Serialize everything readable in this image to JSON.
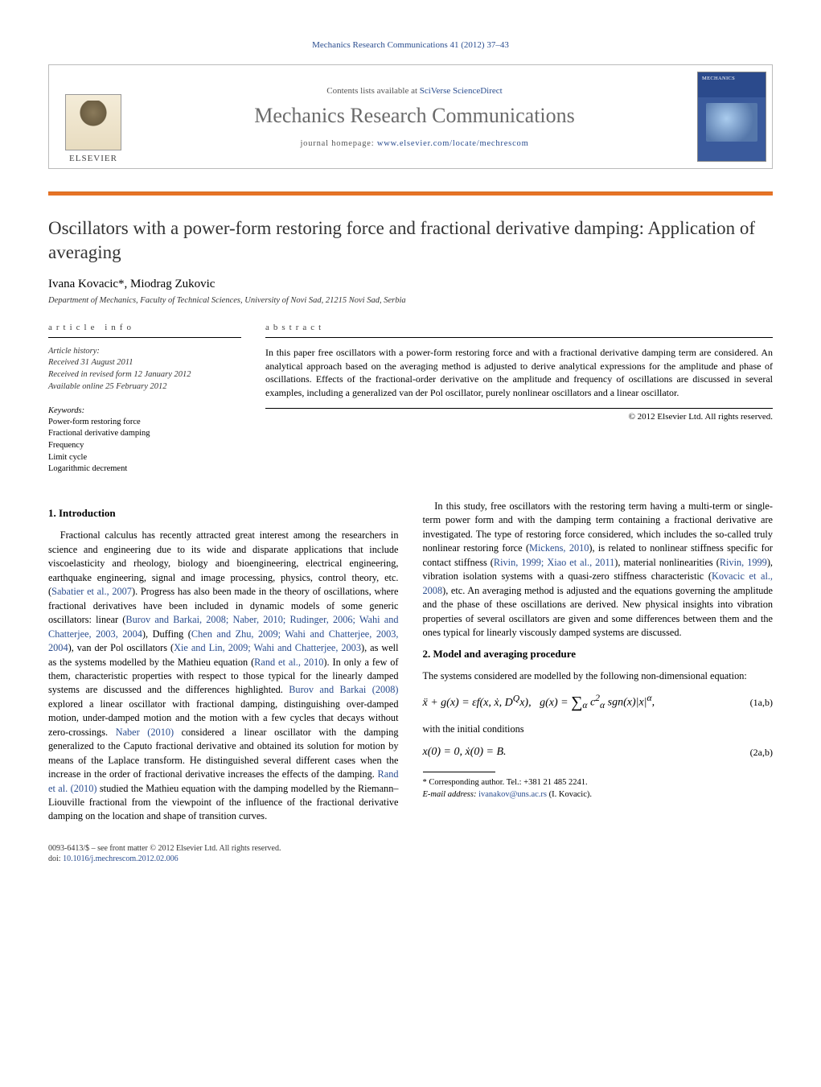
{
  "running_header": "Mechanics Research Communications 41 (2012) 37–43",
  "banner": {
    "contents_prefix": "Contents lists available at ",
    "contents_link": "SciVerse ScienceDirect",
    "journal": "Mechanics Research Communications",
    "homepage_prefix": "journal homepage: ",
    "homepage_url": "www.elsevier.com/locate/mechrescom",
    "elsevier": "ELSEVIER",
    "cover_label": "MECHANICS"
  },
  "title": "Oscillators with a power-form restoring force and fractional derivative damping: Application of averaging",
  "authors": "Ivana Kovacic*, Miodrag Zukovic",
  "affiliation": "Department of Mechanics, Faculty of Technical Sciences, University of Novi Sad, 21215 Novi Sad, Serbia",
  "info": {
    "label": "article info",
    "history_label": "Article history:",
    "received": "Received 31 August 2011",
    "revised": "Received in revised form 12 January 2012",
    "online": "Available online 25 February 2012",
    "keywords_label": "Keywords:",
    "keywords": [
      "Power-form restoring force",
      "Fractional derivative damping",
      "Frequency",
      "Limit cycle",
      "Logarithmic decrement"
    ]
  },
  "abstract": {
    "label": "abstract",
    "text": "In this paper free oscillators with a power-form restoring force and with a fractional derivative damping term are considered. An analytical approach based on the averaging method is adjusted to derive analytical expressions for the amplitude and phase of oscillations. Effects of the fractional-order derivative on the amplitude and frequency of oscillations are discussed in several examples, including a generalized van der Pol oscillator, purely nonlinear oscillators and a linear oscillator.",
    "copyright": "© 2012 Elsevier Ltd. All rights reserved."
  },
  "sections": {
    "s1_title": "1.  Introduction",
    "s1_p1a": "Fractional calculus has recently attracted great interest among the researchers in science and engineering due to its wide and disparate applications that include viscoelasticity and rheology, biology and bioengineering, electrical engineering, earthquake engineering, signal and image processing, physics, control theory, etc. (",
    "s1_r1": "Sabatier et al., 2007",
    "s1_p1b": "). Progress has also been made in the theory of oscillations, where fractional derivatives have been included in dynamic models of some generic oscillators: linear (",
    "s1_r2": "Burov and Barkai, 2008; Naber, 2010; Rudinger, 2006; Wahi and Chatterjee, 2003, 2004",
    "s1_p1c": "), Duffing (",
    "s1_r3": "Chen and Zhu, 2009; Wahi and Chatterjee, 2003, 2004",
    "s1_p1d": "), van der Pol oscillators (",
    "s1_r4": "Xie and Lin, 2009; Wahi and Chatterjee, 2003",
    "s1_p1e": "), as well as the systems modelled by the Mathieu equation (",
    "s1_r5": "Rand et al., 2010",
    "s1_p1f": "). In only a few of them, characteristic properties with respect to those typical for the linearly damped systems are discussed and the differences highlighted. ",
    "s1_r6": "Burov and Barkai (2008)",
    "s1_p1g": " explored a linear oscillator with fractional damping, distinguishing over-damped motion, under-damped motion and the motion with a few cycles that decays without zero-crossings. ",
    "s1_r7": "Naber (2010)",
    "s1_p1h": " considered a linear oscillator with the damping generalized to the Caputo fractional derivative and obtained its solution for motion by means of the Laplace transform. He distinguished several different cases when the increase in the order of fractional derivative increases the effects of the damping. ",
    "s1_r8": "Rand et al. (2010)",
    "s1_p1i": " studied the Mathieu equation with the damping modelled by the Riemann–Liouville fractional from the viewpoint of the influence of the fractional derivative damping on the location and shape of transition curves.",
    "s1_p2a": "In this study, free oscillators with the restoring term having a multi-term or single-term power form and with the damping term containing a fractional derivative are investigated. The type of restoring force considered, which includes the so-called truly nonlinear restoring force (",
    "s1_r9": "Mickens, 2010",
    "s1_p2b": "), is related to nonlinear stiffness specific for contact stiffness (",
    "s1_r10": "Rivin, 1999; Xiao et al., 2011",
    "s1_p2c": "), material nonlinearities (",
    "s1_r11": "Rivin, 1999",
    "s1_p2d": "), vibration isolation systems with a quasi-zero stiffness characteristic (",
    "s1_r12": "Kovacic et al., 2008",
    "s1_p2e": "), etc. An averaging method is adjusted and the equations governing the amplitude and the phase of these oscillations are derived. New physical insights into vibration properties of several oscillators are given and some differences between them and the ones typical for linearly viscously damped systems are discussed.",
    "s2_title": "2.  Model and averaging procedure",
    "s2_p1": "The systems considered are modelled by the following non-dimensional equation:",
    "eq1": "ẍ + g(x) = εf(x, ẋ, D^Q x),    g(x) = ∑ c²_α sgn(x)|x|^α,",
    "eq1_over": "α",
    "eq1_tag": "(1a,b)",
    "s2_p2": "with the initial conditions",
    "eq2": "x(0) = 0,    ẋ(0) = B.",
    "eq2_tag": "(2a,b)"
  },
  "footnotes": {
    "corr": "* Corresponding author. Tel.: +381 21 485 2241.",
    "email_lbl": "E-mail address: ",
    "email": "ivanakov@uns.ac.rs",
    "email_who": " (I. Kovacic)."
  },
  "footer": {
    "line1": "0093-6413/$ – see front matter © 2012 Elsevier Ltd. All rights reserved.",
    "doi_lbl": "doi:",
    "doi": "10.1016/j.mechrescom.2012.02.006"
  },
  "colors": {
    "link": "#2a4d8f",
    "orange": "#e67326",
    "grey_title": "#6b6b6b"
  }
}
